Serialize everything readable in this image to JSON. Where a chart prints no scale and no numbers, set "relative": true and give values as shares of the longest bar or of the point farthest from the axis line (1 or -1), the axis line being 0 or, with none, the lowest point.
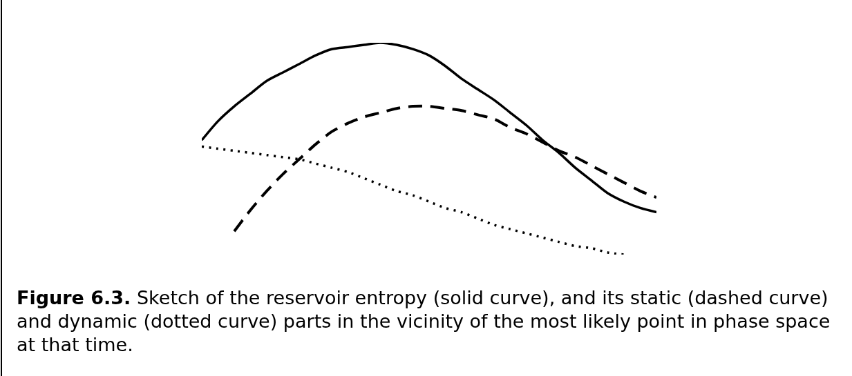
{
  "chart_data": {
    "type": "line",
    "relative": true,
    "categories": [
      null,
      null,
      null,
      null,
      null,
      null,
      null,
      null,
      null,
      null,
      null,
      null,
      null,
      null,
      null,
      null,
      null,
      null,
      null,
      null,
      null,
      null,
      null,
      null,
      null,
      null,
      null,
      null,
      null
    ],
    "series": [
      {
        "color": "#000000",
        "line_style": "solid",
        "values": [
          0.54,
          0.63,
          0.7,
          0.76,
          0.82,
          0.86,
          0.9,
          0.94,
          0.97,
          0.98,
          0.99,
          1.0,
          0.99,
          0.97,
          0.94,
          0.89,
          0.83,
          0.78,
          0.73,
          0.67,
          0.61,
          0.54,
          0.48,
          0.41,
          0.35,
          0.29,
          0.25,
          0.22,
          0.2
        ]
      },
      {
        "color": "#000000",
        "line_style": "dashed",
        "values": [
          null,
          null,
          0.11,
          0.21,
          0.3,
          0.38,
          0.45,
          0.52,
          0.58,
          0.62,
          0.65,
          0.67,
          0.69,
          0.7,
          0.7,
          0.69,
          0.68,
          0.66,
          0.64,
          0.6,
          0.57,
          0.53,
          0.49,
          0.46,
          0.42,
          0.38,
          0.34,
          0.3,
          0.27
        ]
      },
      {
        "color": "#000000",
        "line_style": "dotted",
        "values": [
          0.51,
          0.5,
          0.49,
          0.48,
          0.47,
          0.46,
          0.45,
          0.43,
          0.41,
          0.39,
          0.36,
          0.33,
          0.3,
          0.28,
          0.25,
          0.22,
          0.2,
          0.17,
          0.14,
          0.12,
          0.1,
          0.08,
          0.06,
          0.04,
          0.03,
          0.01,
          0.0,
          null,
          null
        ]
      }
    ],
    "annotations": [
      "Figure 6.3. Sketch of the reservoir entropy (solid curve), and its static (dashed curve) and dynamic (dotted curve) parts in the vicinity of the most likely point in phase space at that time."
    ]
  }
}
